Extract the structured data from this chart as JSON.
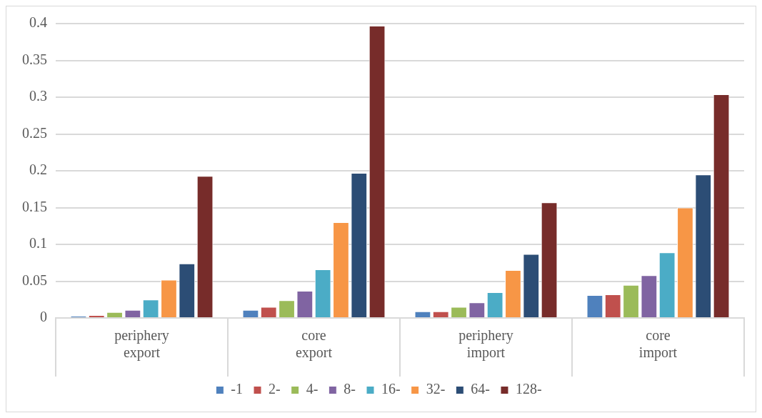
{
  "chart_data": {
    "type": "bar",
    "categories": [
      "periphery\nexport",
      "core\nexport",
      "periphery\nimport",
      "core\nimport"
    ],
    "series": [
      {
        "name": "-1",
        "color": "#4f81bd",
        "values": [
          0.003,
          0.011,
          0.009,
          0.031
        ]
      },
      {
        "name": "2-",
        "color": "#c0504d",
        "values": [
          0.004,
          0.015,
          0.009,
          0.032
        ]
      },
      {
        "name": "4-",
        "color": "#9bbb59",
        "values": [
          0.008,
          0.024,
          0.015,
          0.045
        ]
      },
      {
        "name": "8-",
        "color": "#8064a2",
        "values": [
          0.011,
          0.037,
          0.021,
          0.058
        ]
      },
      {
        "name": "16-",
        "color": "#4bacc6",
        "values": [
          0.025,
          0.066,
          0.035,
          0.089
        ]
      },
      {
        "name": "32-",
        "color": "#f79646",
        "values": [
          0.052,
          0.13,
          0.065,
          0.15
        ]
      },
      {
        "name": "64-",
        "color": "#2c4d75",
        "values": [
          0.074,
          0.197,
          0.087,
          0.195
        ]
      },
      {
        "name": "128-",
        "color": "#772c2a",
        "values": [
          0.193,
          0.397,
          0.157,
          0.304
        ]
      }
    ],
    "ylim": [
      0,
      0.4
    ],
    "yticks": [
      0,
      0.05,
      0.1,
      0.15,
      0.2,
      0.25,
      0.3,
      0.35,
      0.4
    ],
    "grid": "y",
    "legend": "bottom"
  }
}
